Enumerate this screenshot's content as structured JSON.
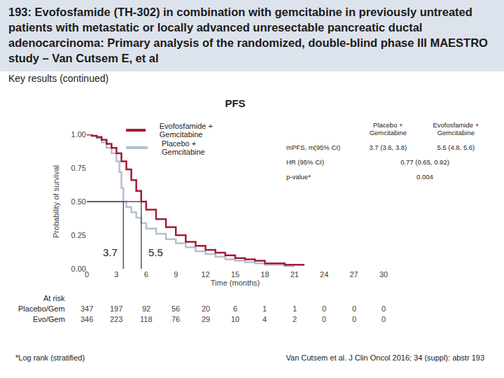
{
  "title": "193: Evofosfamide (TH-302) in combination with gemcitabine in previously untreated patients with metastatic or locally advanced unresectable pancreatic ductal adenocarcinoma: Primary analysis of the randomized, double-blind phase III MAESTRO study – Van Cutsem E, et al",
  "subtitle": "Key results (continued)",
  "chart_data": {
    "type": "line",
    "title": "PFS",
    "x_label": "Time (months)",
    "y_label": "Probability of survival",
    "grid": false,
    "series": [
      {
        "name": "Evofosfamide + Gemcitabine",
        "color": "#a31c33",
        "line_style": "step",
        "x": [
          0,
          0.5,
          1,
          1.5,
          2,
          2.5,
          3,
          3.5,
          4,
          4.5,
          5,
          5.5,
          6,
          7,
          8,
          9,
          10,
          11,
          12,
          13,
          14,
          15,
          16,
          17,
          18,
          20,
          22
        ],
        "values": [
          1,
          0.99,
          0.98,
          0.96,
          0.93,
          0.9,
          0.86,
          0.8,
          0.74,
          0.66,
          0.58,
          0.5,
          0.44,
          0.37,
          0.31,
          0.25,
          0.2,
          0.17,
          0.14,
          0.12,
          0.1,
          0.08,
          0.07,
          0.06,
          0.04,
          0.03,
          0.03
        ]
      },
      {
        "name": "Placebo + Gemcitabine",
        "color": "#b4c0d1",
        "line_style": "step",
        "x": [
          0,
          0.5,
          1,
          1.5,
          2,
          2.5,
          3,
          3.3,
          3.5,
          3.7,
          4,
          4.5,
          5,
          5.5,
          6,
          7,
          8,
          9,
          10,
          11,
          12,
          13,
          14,
          15,
          16,
          17,
          18,
          20,
          21
        ],
        "values": [
          1,
          0.99,
          0.97,
          0.94,
          0.9,
          0.86,
          0.8,
          0.72,
          0.6,
          0.5,
          0.46,
          0.42,
          0.38,
          0.34,
          0.3,
          0.26,
          0.22,
          0.19,
          0.16,
          0.13,
          0.11,
          0.09,
          0.07,
          0.06,
          0.05,
          0.04,
          0.03,
          0.02,
          0.02
        ]
      }
    ],
    "xlim": [
      0,
      30
    ],
    "xticks": [
      0,
      3,
      6,
      9,
      12,
      15,
      18,
      21,
      24,
      27,
      30
    ],
    "ylim": [
      0,
      1
    ],
    "yticks": [
      {
        "value": 0,
        "label": "0.00"
      },
      {
        "value": 0.25,
        "label": "0.25"
      },
      {
        "value": 0.5,
        "label": "0.50"
      },
      {
        "value": 0.75,
        "label": "0.75"
      },
      {
        "value": 1,
        "label": "1.00"
      }
    ],
    "median_level": 0.5,
    "medians": [
      3.7,
      5.5
    ],
    "at_risk": {
      "title": "At risk",
      "rows": [
        {
          "label": "Placebo/Gem",
          "values": [
            347,
            197,
            92,
            56,
            20,
            6,
            1,
            1,
            0,
            0,
            0
          ]
        },
        {
          "label": "Evo/Gem",
          "values": [
            346,
            223,
            118,
            76,
            29,
            10,
            4,
            2,
            0,
            0,
            0
          ]
        }
      ]
    }
  },
  "stats_table": {
    "header": [
      "Placebo + Gemcitabine",
      "Evofosfamide + Gemcitabine"
    ],
    "rows": [
      {
        "label": "mPFS, m(95% CI)",
        "cells": [
          "3.7 (3.6, 3.8)",
          "5.5 (4.8, 5.6)"
        ]
      },
      {
        "label": "HR (95% CI)",
        "cells": [
          "0.77 (0.65, 0.92)"
        ]
      },
      {
        "label": "p-value*",
        "cells": [
          "0.004"
        ]
      }
    ]
  },
  "footnote": "*Log rank (stratified)",
  "citation": "Van Cutsem et al. J Clin Oncol 2016; 34 (suppl): abstr 193"
}
